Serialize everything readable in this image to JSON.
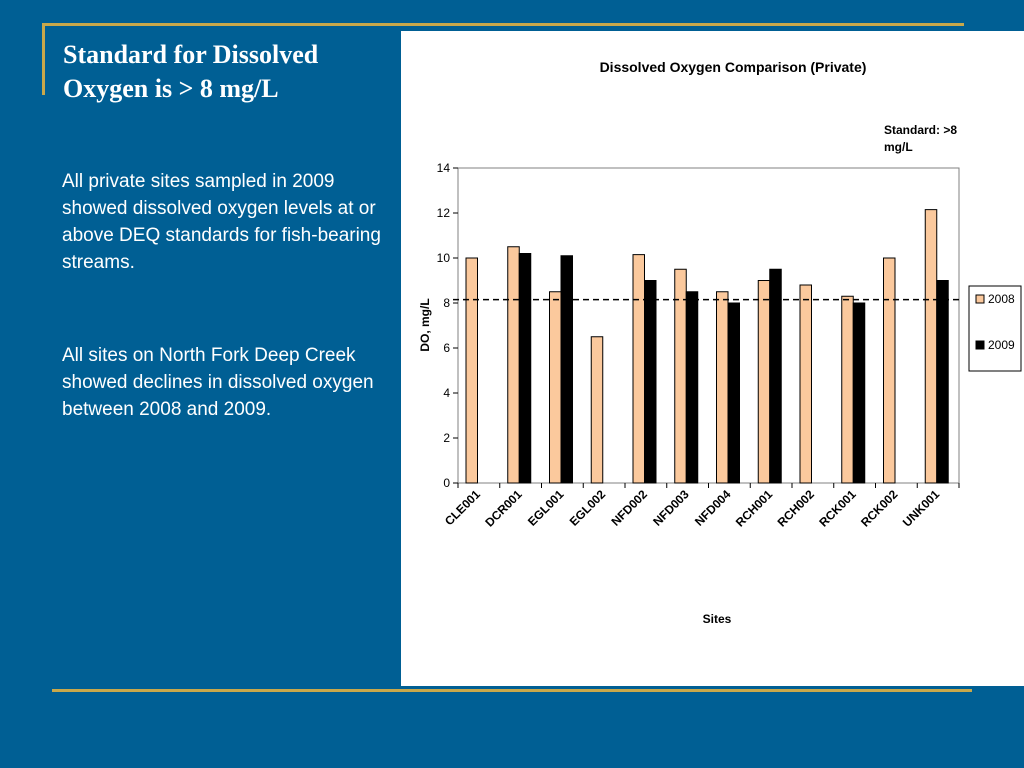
{
  "slide": {
    "title": "Standard for Dissolved\nOxygen is > 8 mg/L",
    "paragraphs": [
      "All private sites sampled in 2009 showed dissolved oxygen levels at or above DEQ standards for fish-bearing streams.",
      "All sites on North Fork Deep Creek showed declines in dissolved oxygen between 2008 and 2009."
    ]
  },
  "colors": {
    "background": "#005f94",
    "accent_rule": "#c8a84b",
    "series_2008": "#fbc99d",
    "series_2009": "#000000"
  },
  "chart_data": {
    "type": "bar",
    "title": "Dissolved Oxygen Comparison (Private)",
    "xlabel": "Sites",
    "ylabel": "DO, mg/L",
    "ylim": [
      0,
      14
    ],
    "yticks": [
      0,
      2,
      4,
      6,
      8,
      10,
      12,
      14
    ],
    "categories": [
      "CLE001",
      "DCR001",
      "EGL001",
      "EGL002",
      "NFD002",
      "NFD003",
      "NFD004",
      "RCH001",
      "RCH002",
      "RCK001",
      "RCK002",
      "UNK001"
    ],
    "series": [
      {
        "name": "2008",
        "values": [
          10,
          10.5,
          8.5,
          6.5,
          10.15,
          9.5,
          8.5,
          9,
          8.8,
          8.3,
          10,
          12.15
        ]
      },
      {
        "name": "2009",
        "values": [
          null,
          10.2,
          10.1,
          null,
          9,
          8.5,
          8,
          9.5,
          null,
          8,
          null,
          9
        ]
      }
    ],
    "reference_line": {
      "value": 8.15,
      "label": "Standard: >8\nmg/L",
      "style": "dashed"
    },
    "legend_placement": "right",
    "grid": false
  }
}
